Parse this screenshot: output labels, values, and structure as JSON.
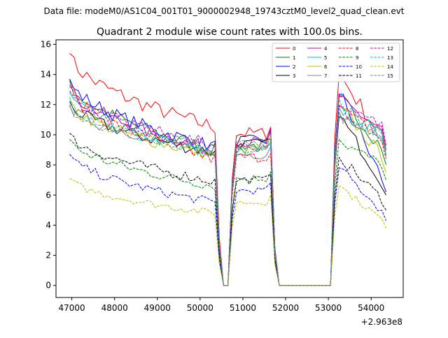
{
  "chart_data": {
    "type": "line",
    "file_label": "Data file: modeM0/AS1C04_001T01_9000002948_19743cztM0_level2_quad_clean.evt",
    "title": "Quadrant 2 module wise count rates with 100.0s bins.",
    "xlabel": "",
    "ylabel": "",
    "x_offset_label": "+2.963e8",
    "xlim": [
      46630,
      54750
    ],
    "ylim": [
      -0.8,
      16.3
    ],
    "x_ticks": [
      47000,
      48000,
      49000,
      50000,
      51000,
      52000,
      53000,
      54000
    ],
    "x_tick_labels": [
      "47000",
      "48000",
      "49000",
      "50000",
      "51000",
      "52000",
      "53000",
      "54000"
    ],
    "y_ticks": [
      0,
      2,
      4,
      6,
      8,
      10,
      12,
      14,
      16
    ],
    "y_tick_labels": [
      "0",
      "2",
      "4",
      "6",
      "8",
      "10",
      "12",
      "14",
      "16"
    ],
    "bin_size": 100,
    "segments": [
      {
        "start": 46950,
        "end": 50450
      },
      {
        "start": 50450,
        "end": 51750
      },
      {
        "start": 51750,
        "end": 53150
      },
      {
        "start": 53150,
        "end": 54350
      }
    ],
    "gap_levels": {
      "first_gap": [
        0,
        0
      ],
      "second_gap_flat": 0
    },
    "series": [
      {
        "name": "0",
        "color": "#ff0000",
        "dash": "solid",
        "start": 15.4,
        "end": 10.5,
        "plateau": 10.1,
        "flare_peak": 14.0,
        "flare_end": 8.6
      },
      {
        "name": "1",
        "color": "#008000",
        "dash": "solid",
        "start": 13.6,
        "end": 9.0,
        "plateau": 9.3,
        "flare_peak": 12.6,
        "flare_end": 8.0
      },
      {
        "name": "2",
        "color": "#0000ff",
        "dash": "solid",
        "start": 13.7,
        "end": 9.2,
        "plateau": 9.6,
        "flare_peak": 12.7,
        "flare_end": 6.2
      },
      {
        "name": "3",
        "color": "#000000",
        "dash": "solid",
        "start": 12.2,
        "end": 8.8,
        "plateau": 9.4,
        "flare_peak": 11.2,
        "flare_end": 6.0
      },
      {
        "name": "4",
        "color": "#bf00bf",
        "dash": "solid",
        "start": 13.3,
        "end": 9.0,
        "plateau": 9.5,
        "flare_peak": 12.5,
        "flare_end": 9.0
      },
      {
        "name": "5",
        "color": "#00bfbf",
        "dash": "solid",
        "start": 12.8,
        "end": 8.7,
        "plateau": 9.0,
        "flare_peak": 11.8,
        "flare_end": 8.7
      },
      {
        "name": "6",
        "color": "#bfbf00",
        "dash": "solid",
        "start": 12.3,
        "end": 8.6,
        "plateau": 9.0,
        "flare_peak": 11.9,
        "flare_end": 7.5
      },
      {
        "name": "7",
        "color": "#808080",
        "dash": "solid",
        "start": 11.9,
        "end": 9.1,
        "plateau": 8.7,
        "flare_peak": 11.5,
        "flare_end": 9.0
      },
      {
        "name": "8",
        "color": "#ff0000",
        "dash": "dashed",
        "start": 13.2,
        "end": 8.4,
        "plateau": 8.5,
        "flare_peak": 12.0,
        "flare_end": 8.4
      },
      {
        "name": "9",
        "color": "#008000",
        "dash": "dashed",
        "start": 9.7,
        "end": 6.6,
        "plateau": 7.1,
        "flare_peak": 9.7,
        "flare_end": 7.0
      },
      {
        "name": "10",
        "color": "#0000ff",
        "dash": "dashed",
        "start": 8.7,
        "end": 5.5,
        "plateau": 6.3,
        "flare_peak": 7.8,
        "flare_end": 4.3
      },
      {
        "name": "11",
        "color": "#000000",
        "dash": "dashed",
        "start": 10.1,
        "end": 6.9,
        "plateau": 7.0,
        "flare_peak": 8.5,
        "flare_end": 5.0
      },
      {
        "name": "12",
        "color": "#bf00bf",
        "dash": "dashed",
        "start": 12.9,
        "end": 9.3,
        "plateau": 9.2,
        "flare_peak": 11.9,
        "flare_end": 9.3
      },
      {
        "name": "13",
        "color": "#00bfbf",
        "dash": "dashed",
        "start": 12.5,
        "end": 8.6,
        "plateau": 8.9,
        "flare_peak": 12.4,
        "flare_end": 8.6
      },
      {
        "name": "14",
        "color": "#bfbf00",
        "dash": "dashed",
        "start": 7.1,
        "end": 4.8,
        "plateau": 5.5,
        "flare_peak": 6.6,
        "flare_end": 3.8
      },
      {
        "name": "15",
        "color": "#808080",
        "dash": "dashed",
        "start": 12.0,
        "end": 8.9,
        "plateau": 9.4,
        "flare_peak": 11.5,
        "flare_end": 8.9
      }
    ]
  }
}
